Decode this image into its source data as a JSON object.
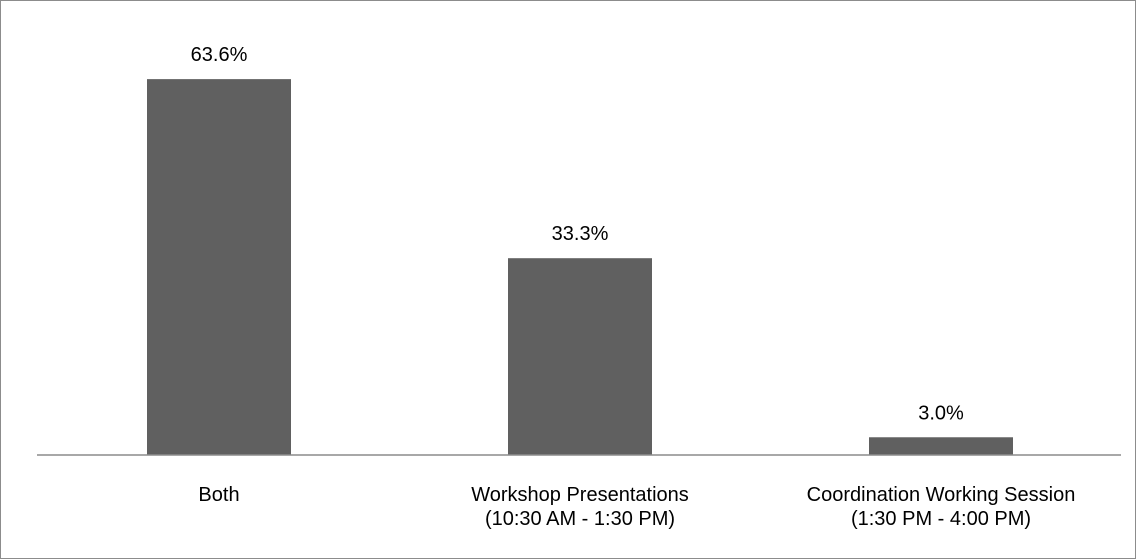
{
  "chart_data": {
    "type": "bar",
    "title": "",
    "xlabel": "",
    "ylabel": "",
    "categories": [
      [
        "Both"
      ],
      [
        "Workshop Presentations",
        "(10:30 AM - 1:30 PM)"
      ],
      [
        "Coordination Working Session",
        "(1:30 PM - 4:00 PM)"
      ]
    ],
    "values": [
      63.6,
      33.3,
      3.0
    ],
    "value_labels": [
      "63.6%",
      "33.3%",
      "3.0%"
    ],
    "unit": "%",
    "ylim": [
      0,
      70
    ],
    "grid": false,
    "legend": "none",
    "bar_color": "#606060",
    "axis_color": "#8c8c8c"
  }
}
